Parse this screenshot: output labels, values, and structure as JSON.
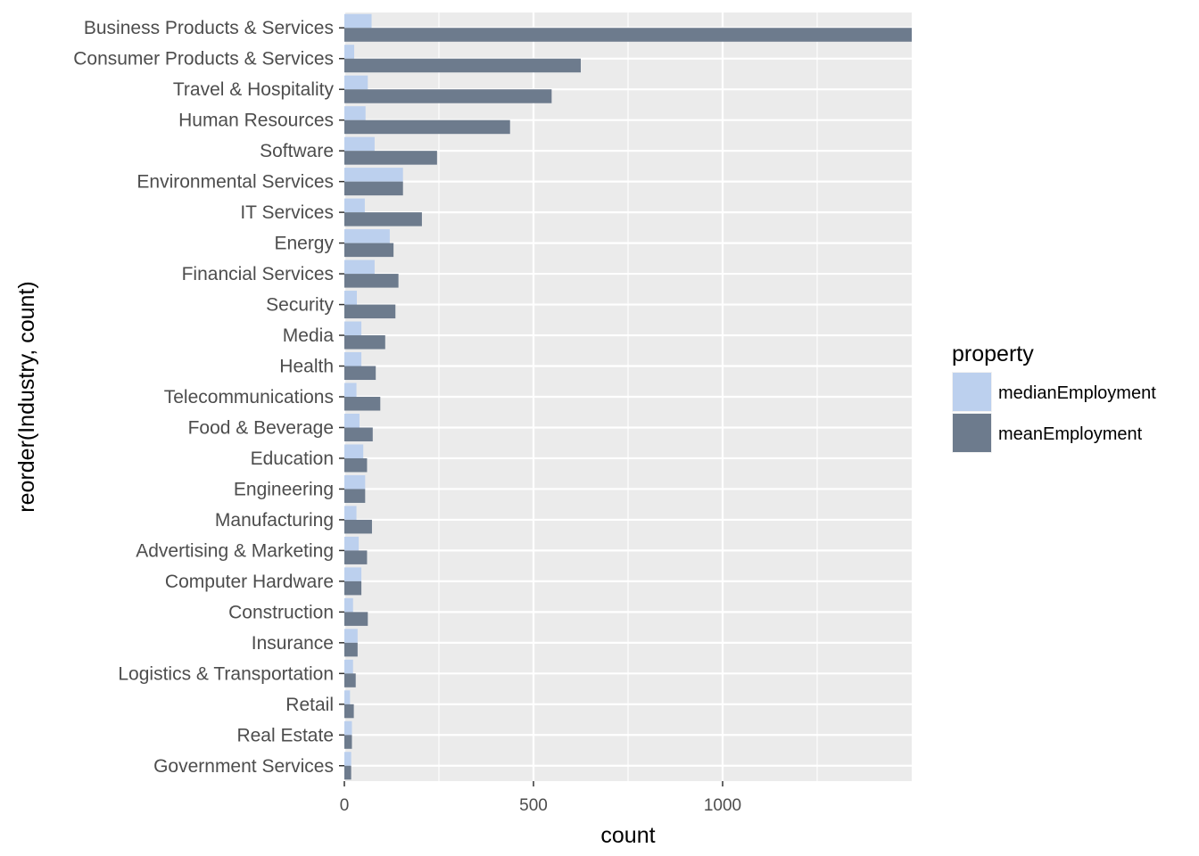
{
  "chart_data": {
    "type": "bar",
    "orientation": "horizontal",
    "categories": [
      "Business Products & Services",
      "Consumer Products & Services",
      "Travel & Hospitality",
      "Human Resources",
      "Software",
      "Environmental Services",
      "IT Services",
      "Energy",
      "Financial Services",
      "Security",
      "Media",
      "Health",
      "Telecommunications",
      "Food & Beverage",
      "Education",
      "Engineering",
      "Manufacturing",
      "Advertising & Marketing",
      "Computer Hardware",
      "Construction",
      "Insurance",
      "Logistics & Transportation",
      "Retail",
      "Real Estate",
      "Government Services"
    ],
    "series": [
      {
        "name": "medianEmployment",
        "color": "#bcd0ee",
        "values": [
          72,
          26,
          62,
          56,
          80,
          155,
          54,
          120,
          80,
          33,
          45,
          45,
          32,
          40,
          50,
          55,
          32,
          38,
          45,
          23,
          35,
          23,
          15,
          20,
          18
        ]
      },
      {
        "name": "meanEmployment",
        "color": "#6d7b8d",
        "values": [
          1500,
          625,
          548,
          438,
          245,
          155,
          205,
          130,
          143,
          135,
          108,
          83,
          95,
          75,
          60,
          55,
          73,
          60,
          45,
          62,
          35,
          30,
          25,
          20,
          18
        ]
      }
    ],
    "xlabel": "count",
    "ylabel": "reorder(Industry, count)",
    "xlim": [
      0,
      1500
    ],
    "xticks": [
      0,
      500,
      1000
    ],
    "grid": true,
    "legend": {
      "title": "property",
      "position": "right",
      "items": [
        "medianEmployment",
        "meanEmployment"
      ]
    },
    "panel_background": "#ebebeb"
  }
}
